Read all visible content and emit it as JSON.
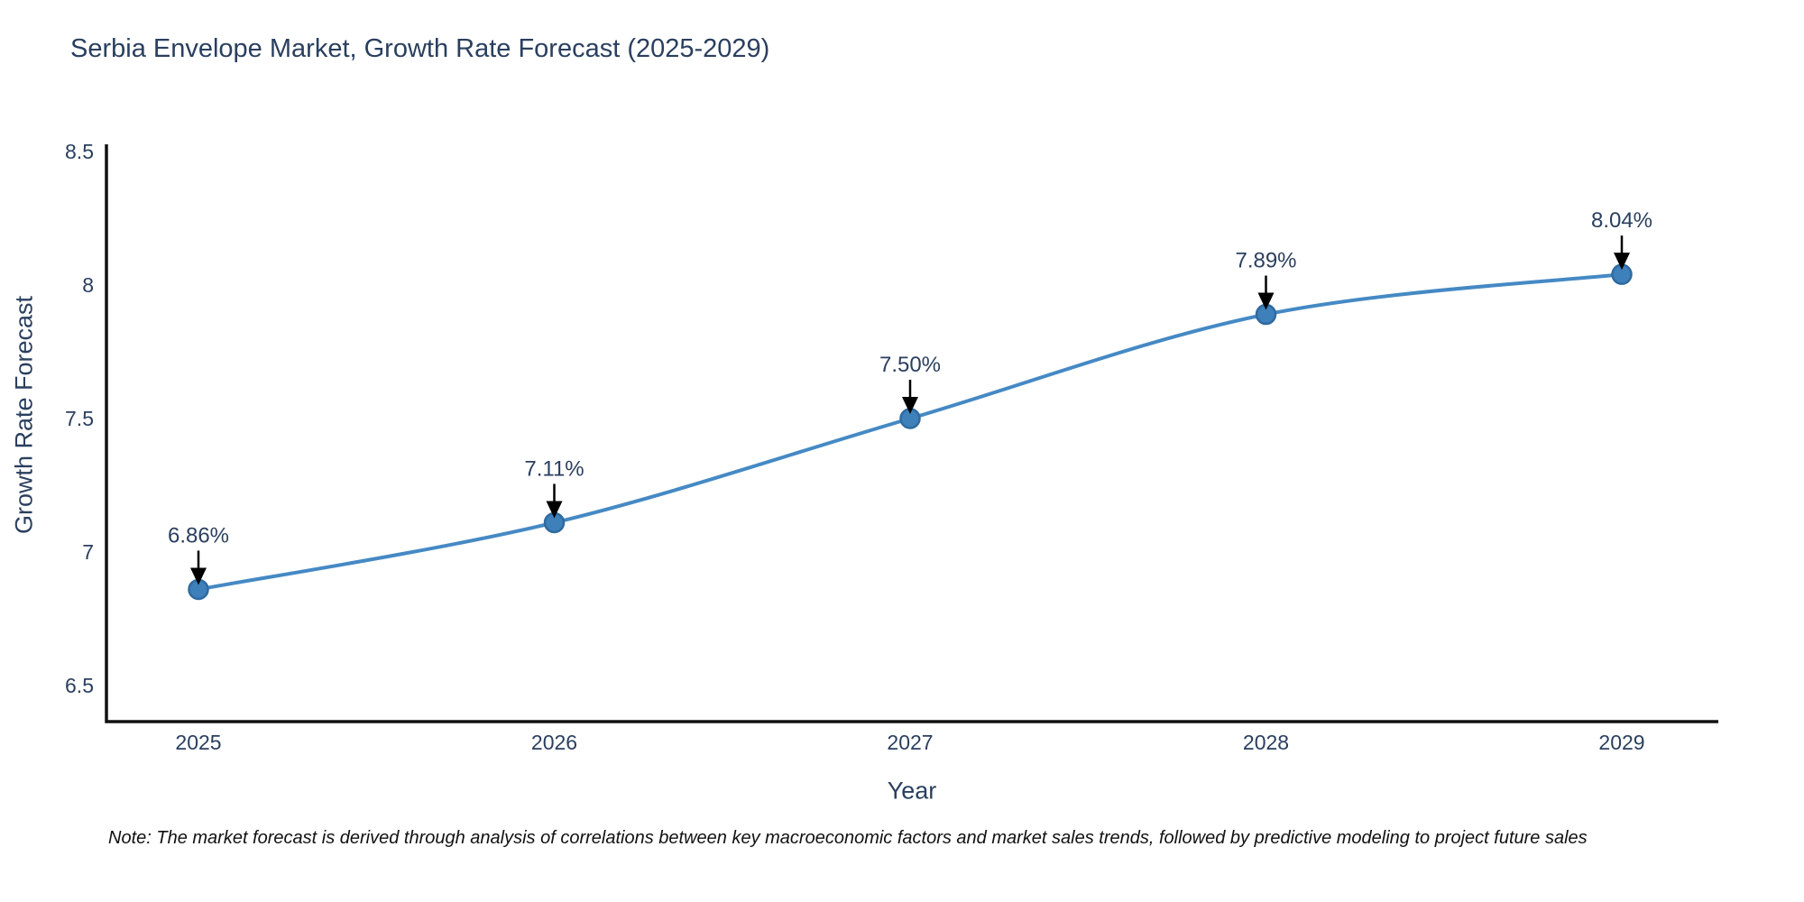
{
  "chart": {
    "title": "Serbia Envelope Market, Growth Rate Forecast (2025-2029)",
    "xlabel": "Year",
    "ylabel": "Growth Rate Forecast",
    "note": "Note: The market forecast is derived through analysis of correlations between key macroeconomic factors and market sales trends, followed by predictive modeling to project future sales"
  },
  "chart_data": {
    "type": "line",
    "title": "Serbia Envelope Market, Growth Rate Forecast (2025-2029)",
    "xlabel": "Year",
    "ylabel": "Growth Rate Forecast",
    "x": [
      2025,
      2026,
      2027,
      2028,
      2029
    ],
    "values": [
      6.86,
      7.11,
      7.5,
      7.89,
      8.04
    ],
    "point_labels": [
      "6.86%",
      "7.11%",
      "7.50%",
      "7.89%",
      "8.04%"
    ],
    "x_tick_labels": [
      "2025",
      "2026",
      "2027",
      "2028",
      "2029"
    ],
    "y_ticks": [
      6.5,
      7,
      7.5,
      8,
      8.5
    ],
    "y_tick_labels": [
      "6.5",
      "7",
      "7.5",
      "8",
      "8.5"
    ],
    "ylim": [
      6.37,
      8.53
    ],
    "grid": false,
    "legend": "none",
    "smooth": true,
    "colors": {
      "line": "#4589c4",
      "marker_fill": "#3d80ba",
      "marker_edge": "#2f6aa0",
      "axis": "#111111",
      "text": "#2a3f5f",
      "arrow": "#000000"
    }
  }
}
